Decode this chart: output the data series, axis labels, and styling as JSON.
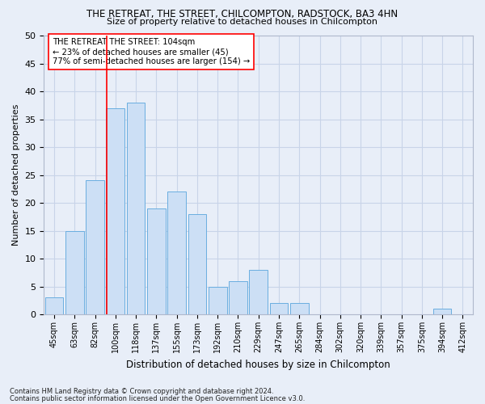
{
  "title_line1": "THE RETREAT, THE STREET, CHILCOMPTON, RADSTOCK, BA3 4HN",
  "title_line2": "Size of property relative to detached houses in Chilcompton",
  "xlabel": "Distribution of detached houses by size in Chilcompton",
  "ylabel": "Number of detached properties",
  "categories": [
    "45sqm",
    "63sqm",
    "82sqm",
    "100sqm",
    "118sqm",
    "137sqm",
    "155sqm",
    "173sqm",
    "192sqm",
    "210sqm",
    "229sqm",
    "247sqm",
    "265sqm",
    "284sqm",
    "302sqm",
    "320sqm",
    "339sqm",
    "357sqm",
    "375sqm",
    "394sqm",
    "412sqm"
  ],
  "values": [
    3,
    15,
    24,
    37,
    38,
    19,
    22,
    18,
    5,
    6,
    8,
    2,
    2,
    0,
    0,
    0,
    0,
    0,
    0,
    1,
    0
  ],
  "bar_color": "#ccdff5",
  "bar_edge_color": "#6aaee0",
  "grid_color": "#c8d4e8",
  "background_color": "#e8eef8",
  "vline_color": "red",
  "vline_index": 3.5,
  "annotation_text": "THE RETREAT THE STREET: 104sqm\n← 23% of detached houses are smaller (45)\n77% of semi-detached houses are larger (154) →",
  "annotation_box_color": "white",
  "annotation_edge_color": "red",
  "footnote1": "Contains HM Land Registry data © Crown copyright and database right 2024.",
  "footnote2": "Contains public sector information licensed under the Open Government Licence v3.0.",
  "ylim": [
    0,
    50
  ],
  "yticks": [
    0,
    5,
    10,
    15,
    20,
    25,
    30,
    35,
    40,
    45,
    50
  ]
}
